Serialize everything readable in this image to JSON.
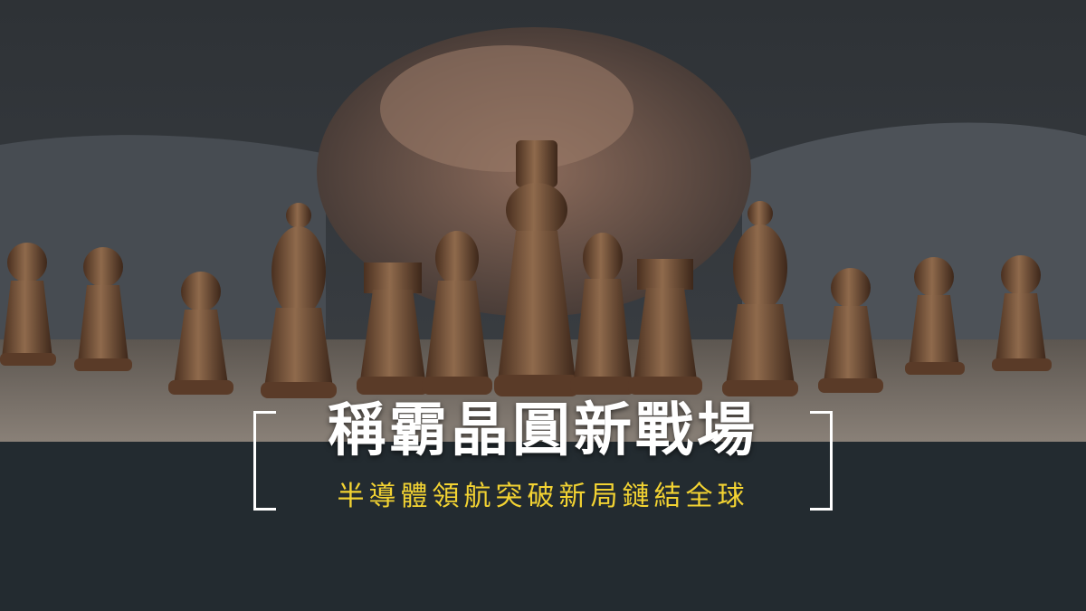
{
  "banner": {
    "title": "稱霸晶圓新戰場",
    "subtitle": "半導體領航突破新局鏈結全球"
  },
  "photo": {
    "subject": "chess-pieces-and-clasped-hands",
    "colors": {
      "band": "#232b30",
      "subtitle": "#f3d332",
      "title": "#ffffff"
    }
  }
}
